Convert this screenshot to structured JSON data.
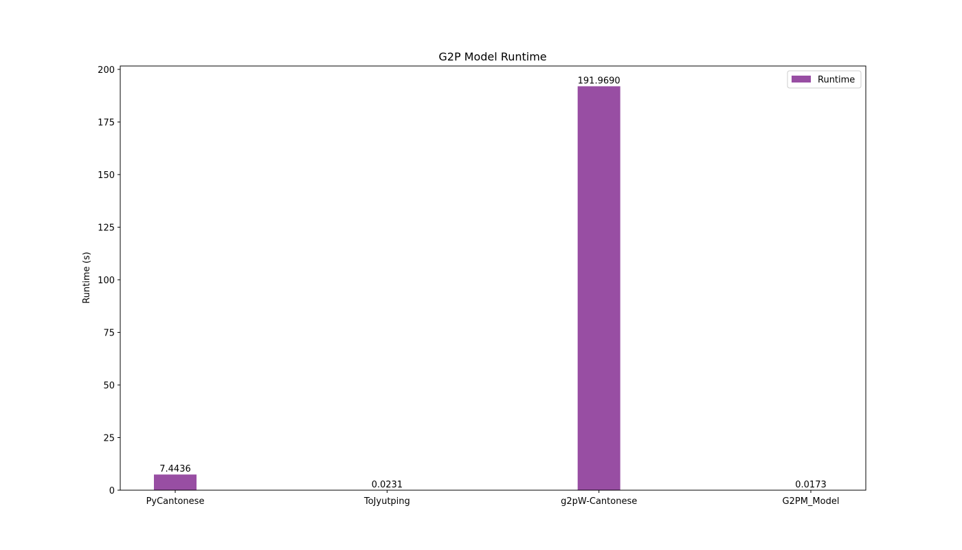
{
  "chart_data": {
    "type": "bar",
    "title": "G2P Model Runtime",
    "xlabel": "",
    "ylabel": "Runtime (s)",
    "categories": [
      "PyCantonese",
      "ToJyutping",
      "g2pW-Cantonese",
      "G2PM_Model"
    ],
    "series": [
      {
        "name": "Runtime",
        "values": [
          7.4436,
          0.0231,
          191.969,
          0.0173
        ],
        "labels": [
          "7.4436",
          "0.0231",
          "191.9690",
          "0.0173"
        ],
        "color": "#984ea3"
      }
    ],
    "ylim": [
      0,
      201.6
    ],
    "yticks": [
      0,
      25,
      50,
      75,
      100,
      125,
      150,
      175,
      200
    ],
    "grid": false,
    "legend": "top-right"
  }
}
